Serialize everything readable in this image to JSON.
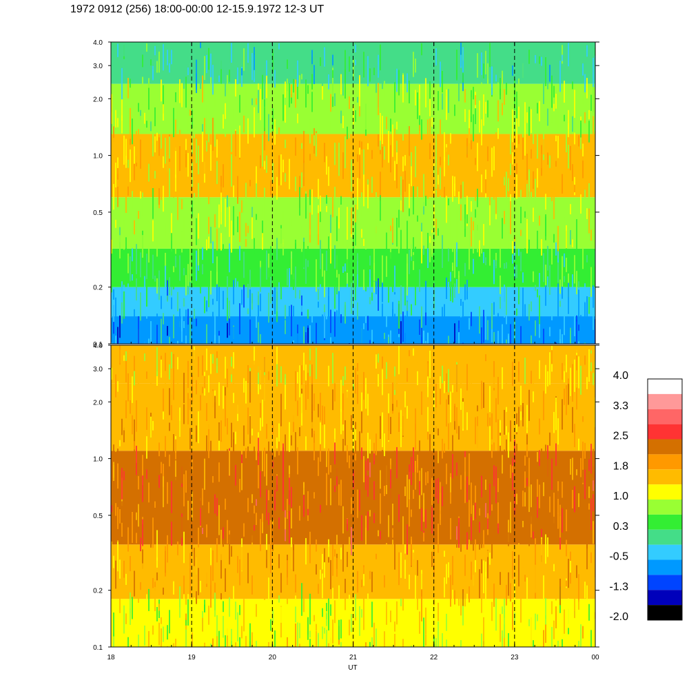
{
  "title": "1972 0912 (256) 18:00-00:00 12-15.9.1972  12-3 UT",
  "chart_data": [
    {
      "type": "heatmap",
      "panel": "upper",
      "x_ticks": [
        "18",
        "19",
        "20",
        "21",
        "22",
        "23",
        "00"
      ],
      "x_values": [
        18,
        19,
        20,
        21,
        22,
        23,
        24
      ],
      "y_ticks": [
        "0.1",
        "0.2",
        "0.5",
        "1.0",
        "2.0",
        "3.0",
        "4.0"
      ],
      "y_values": [
        0.1,
        0.2,
        0.5,
        1.0,
        2.0,
        3.0,
        4.0
      ],
      "y_scale": "log",
      "xlim": [
        18,
        24
      ],
      "ylim": [
        0.1,
        4.0
      ],
      "dashed_time_markers": [
        19,
        20,
        21,
        22,
        23
      ],
      "bands": [
        {
          "y_from": 0.1,
          "y_to": 0.14,
          "level": -0.6
        },
        {
          "y_from": 0.14,
          "y_to": 0.2,
          "level": -0.2
        },
        {
          "y_from": 0.2,
          "y_to": 0.32,
          "level": 0.3
        },
        {
          "y_from": 0.32,
          "y_to": 0.6,
          "level": 0.9
        },
        {
          "y_from": 0.6,
          "y_to": 1.3,
          "level": 1.4
        },
        {
          "y_from": 1.3,
          "y_to": 2.4,
          "level": 0.8
        },
        {
          "y_from": 2.4,
          "y_to": 4.0,
          "level": 0.1
        }
      ]
    },
    {
      "type": "heatmap",
      "panel": "lower",
      "x_ticks": [
        "18",
        "19",
        "20",
        "21",
        "22",
        "23",
        "00"
      ],
      "x_values": [
        18,
        19,
        20,
        21,
        22,
        23,
        24
      ],
      "y_ticks": [
        "0.1",
        "0.2",
        "0.5",
        "1.0",
        "2.0",
        "3.0",
        "4.0"
      ],
      "y_values": [
        0.1,
        0.2,
        0.5,
        1.0,
        2.0,
        3.0,
        4.0
      ],
      "y_scale": "log",
      "xlim": [
        18,
        24
      ],
      "ylim": [
        0.1,
        4.0
      ],
      "xlabel": "UT",
      "dashed_time_markers": [
        19,
        20,
        21,
        22,
        23
      ],
      "bands": [
        {
          "y_from": 0.1,
          "y_to": 0.18,
          "level": 1.1
        },
        {
          "y_from": 0.18,
          "y_to": 0.35,
          "level": 1.7
        },
        {
          "y_from": 0.35,
          "y_to": 1.1,
          "level": 2.2
        },
        {
          "y_from": 1.1,
          "y_to": 2.5,
          "level": 1.7
        },
        {
          "y_from": 2.5,
          "y_to": 4.0,
          "level": 1.4
        }
      ]
    }
  ],
  "colorbar": {
    "labels": [
      "4.0",
      "3.3",
      "2.5",
      "1.8",
      "1.0",
      "0.3",
      "-0.5",
      "-1.3",
      "-2.0"
    ],
    "colors_top_to_bottom": [
      "#ffffff",
      "#ff9999",
      "#ff6666",
      "#ff3333",
      "#d47000",
      "#ff9900",
      "#ffbb00",
      "#ffff00",
      "#99ff33",
      "#33ee33",
      "#44dd88",
      "#33ccff",
      "#0099ff",
      "#0044ff",
      "#0000bb",
      "#000000"
    ],
    "value_max": 4.0,
    "value_min": -2.0
  }
}
